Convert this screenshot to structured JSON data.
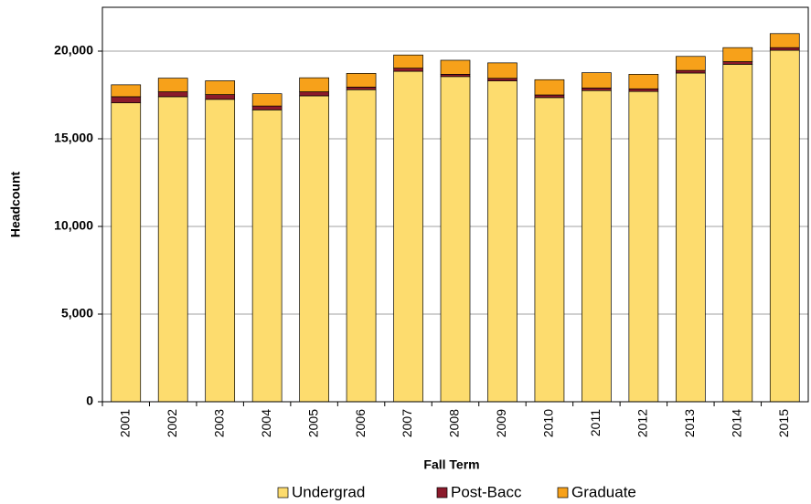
{
  "chart_data": {
    "type": "stacked_bar",
    "x_label": "Fall Term",
    "y_label": "Headcount",
    "categories": [
      "2001",
      "2002",
      "2003",
      "2004",
      "2005",
      "2006",
      "2007",
      "2008",
      "2009",
      "2010",
      "2011",
      "2012",
      "2013",
      "2014",
      "2015"
    ],
    "series": [
      {
        "name": "Undergrad",
        "color": "#fddc6e",
        "values": [
          17050,
          17400,
          17250,
          16650,
          17450,
          17800,
          18850,
          18550,
          18300,
          17350,
          17750,
          17700,
          18750,
          19250,
          20050
        ]
      },
      {
        "name": "Post-Bacc",
        "color": "#8b1a2b",
        "values": [
          350,
          280,
          270,
          220,
          230,
          150,
          180,
          130,
          150,
          150,
          150,
          150,
          150,
          150,
          150
        ]
      },
      {
        "name": "Graduate",
        "color": "#f7a11a",
        "values": [
          680,
          780,
          790,
          700,
          800,
          780,
          750,
          800,
          880,
          870,
          870,
          830,
          800,
          800,
          800
        ]
      }
    ],
    "ylim": [
      0,
      22500
    ],
    "yticks": [
      0,
      {
        "value": 5000,
        "label": "5,000"
      },
      {
        "value": 10000,
        "label": "10,000"
      },
      {
        "value": 15000,
        "label": "15,000"
      },
      {
        "value": 20000,
        "label": "20,000"
      }
    ],
    "grid": true,
    "legend": "bottom"
  }
}
